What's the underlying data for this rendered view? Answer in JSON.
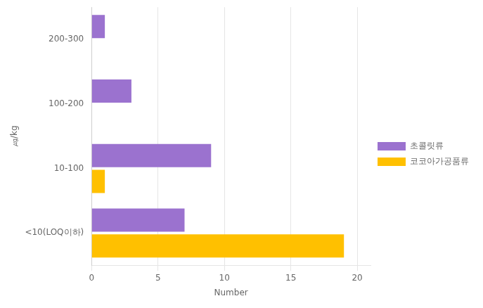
{
  "chart_data": {
    "type": "bar",
    "orientation": "horizontal",
    "categories": [
      "<10(LOQ이하)",
      "10-100",
      "100-200",
      "200-300"
    ],
    "series": [
      {
        "name": "초콜릿류",
        "color": "#9B72CF",
        "values": [
          7,
          9,
          3,
          1
        ]
      },
      {
        "name": "코코아가공품류",
        "color": "#FFC000",
        "values": [
          19,
          1,
          0,
          0
        ]
      }
    ],
    "xlabel": "Number",
    "ylabel": "㎍/kg",
    "xlim": [
      0,
      21
    ],
    "xticks": [
      0,
      5,
      10,
      15,
      20
    ],
    "grid": true,
    "legend": "right"
  }
}
